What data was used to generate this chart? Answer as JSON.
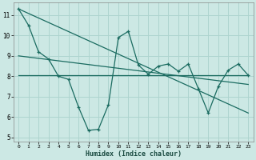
{
  "xlabel": "Humidex (Indice chaleur)",
  "bg_color": "#cce8e4",
  "grid_color": "#aed4cf",
  "line_color": "#1a6b60",
  "xlim": [
    -0.5,
    23.5
  ],
  "ylim": [
    4.8,
    11.6
  ],
  "xticks": [
    0,
    1,
    2,
    3,
    4,
    5,
    6,
    7,
    8,
    9,
    10,
    11,
    12,
    13,
    14,
    15,
    16,
    17,
    18,
    19,
    20,
    21,
    22,
    23
  ],
  "yticks": [
    5,
    6,
    7,
    8,
    9,
    10,
    11
  ],
  "main_series_x": [
    0,
    1,
    2,
    3,
    4,
    5,
    6,
    7,
    8,
    9,
    10,
    11,
    12,
    13,
    14,
    15,
    16,
    17,
    18,
    19,
    20,
    21,
    22,
    23
  ],
  "main_series_y": [
    11.3,
    10.5,
    9.2,
    8.85,
    8.0,
    7.85,
    6.5,
    5.35,
    5.4,
    6.6,
    9.9,
    10.2,
    8.55,
    8.1,
    8.5,
    8.6,
    8.25,
    8.6,
    7.4,
    6.2,
    7.5,
    8.3,
    8.6,
    8.05
  ],
  "trend1_x": [
    0,
    23
  ],
  "trend1_y": [
    11.3,
    6.2
  ],
  "trend2_x": [
    0,
    23
  ],
  "trend2_y": [
    9.0,
    7.6
  ],
  "flat_line_x": [
    0,
    23
  ],
  "flat_line_y": [
    8.05,
    8.05
  ]
}
